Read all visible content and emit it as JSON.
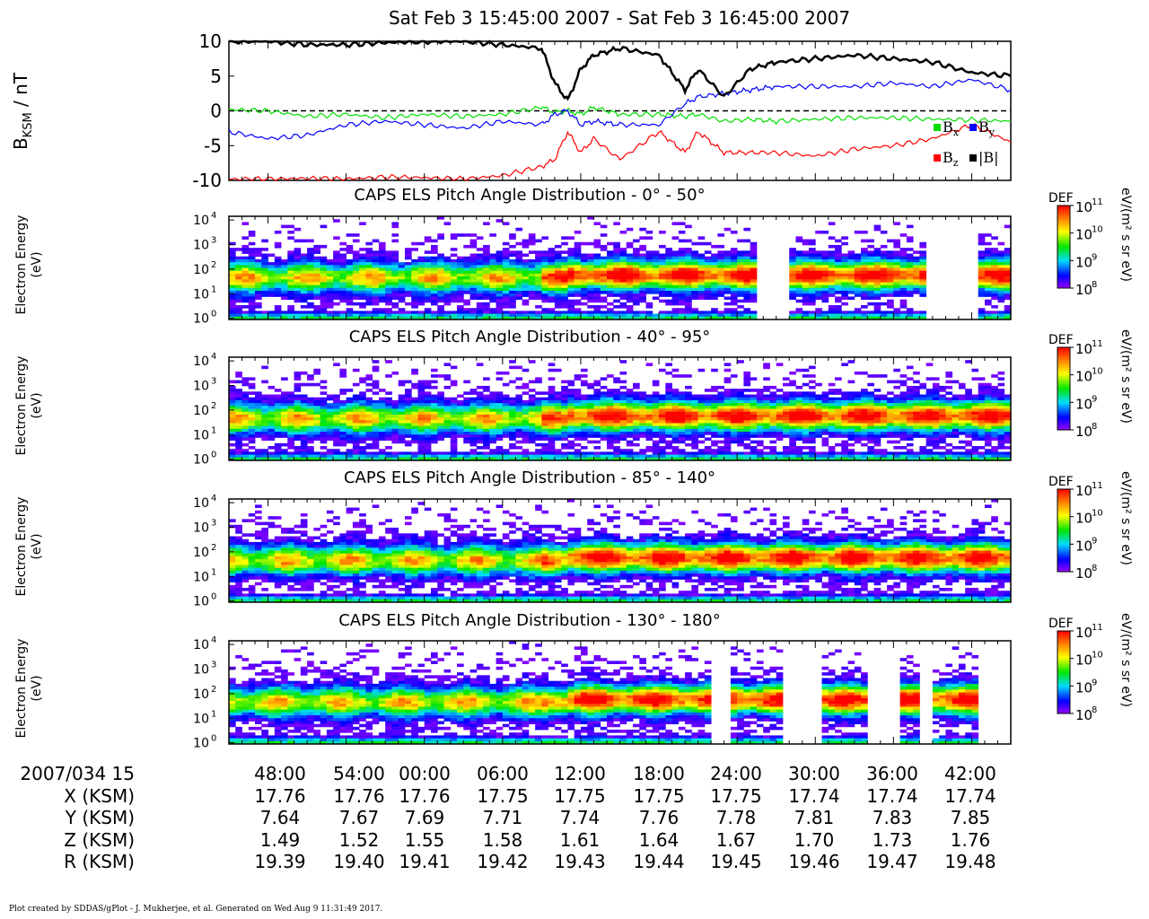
{
  "title": "Sat Feb 3 15:45:00 2007 - Sat Feb 3 16:45:00 2007",
  "mag_panel": {
    "ylabel": "B",
    "ylabel_sub": "KSM",
    "ylabel_unit": " / nT",
    "yticks": [
      "10",
      "5",
      "0",
      "-5",
      "-10"
    ],
    "legend": [
      {
        "label": "B",
        "sub": "x",
        "color": "#00dd00"
      },
      {
        "label": "B",
        "sub": "y",
        "color": "#0000ff"
      },
      {
        "label": "B",
        "sub": "z",
        "color": "#ff0000"
      },
      {
        "label": "|B|",
        "sub": "",
        "color": "#000000"
      }
    ]
  },
  "spectrograms": [
    {
      "title": "CAPS ELS Pitch Angle Distribution - 0° - 50°",
      "ylabel_top": "Electron Energy",
      "ylabel_bottom": "(eV)"
    },
    {
      "title": "CAPS ELS Pitch Angle Distribution - 40° - 95°",
      "ylabel_top": "Electron Energy",
      "ylabel_bottom": "(eV)"
    },
    {
      "title": "CAPS ELS Pitch Angle Distribution - 85° - 140°",
      "ylabel_top": "Electron Energy",
      "ylabel_bottom": "(eV)"
    },
    {
      "title": "CAPS ELS Pitch Angle Distribution - 130° - 180°",
      "ylabel_top": "Electron Energy",
      "ylabel_bottom": "(eV)"
    }
  ],
  "energy_ticks": [
    "10",
    "10",
    "10",
    "10",
    "10"
  ],
  "energy_tick_exps": [
    "4",
    "3",
    "2",
    "1",
    "0"
  ],
  "colorbar": {
    "label": "DEF",
    "unit": "eV/(m² s sr eV)",
    "ticks": [
      "10",
      "10",
      "10",
      "10"
    ],
    "tick_exps": [
      "11",
      "10",
      "9",
      "8"
    ]
  },
  "ephemeris": {
    "rows": [
      {
        "label": "2007/034 15",
        "values": [
          "48:00",
          "54:00",
          "00:00",
          "06:00",
          "12:00",
          "18:00",
          "24:00",
          "30:00",
          "36:00",
          "42:00"
        ]
      },
      {
        "label": "X (KSM)",
        "values": [
          "17.76",
          "17.76",
          "17.76",
          "17.75",
          "17.75",
          "17.75",
          "17.75",
          "17.74",
          "17.74",
          "17.74"
        ]
      },
      {
        "label": "Y (KSM)",
        "values": [
          "7.64",
          "7.67",
          "7.69",
          "7.71",
          "7.74",
          "7.76",
          "7.78",
          "7.81",
          "7.83",
          "7.85"
        ]
      },
      {
        "label": "Z (KSM)",
        "values": [
          "1.49",
          "1.52",
          "1.55",
          "1.58",
          "1.61",
          "1.64",
          "1.67",
          "1.70",
          "1.73",
          "1.76"
        ]
      },
      {
        "label": "R (KSM)",
        "values": [
          "19.39",
          "19.40",
          "19.41",
          "19.42",
          "19.43",
          "19.44",
          "19.45",
          "19.46",
          "19.47",
          "19.48"
        ]
      }
    ]
  },
  "footer": "Plot created by SDDAS/gPlot - J. Mukherjee, et al.  Generated on Wed Aug 9 11:31:49 2017.",
  "chart_data": [
    {
      "type": "line",
      "title": "",
      "xlabel": "",
      "ylabel": "B KSM / nT",
      "x_minutes": [
        0,
        3,
        6,
        9,
        12,
        15,
        18,
        21,
        24,
        25,
        26,
        27,
        28,
        30,
        33,
        35,
        36,
        38,
        40,
        42,
        45,
        48,
        51,
        54,
        57,
        60
      ],
      "ylim": [
        -10,
        10
      ],
      "series": [
        {
          "name": "Bx",
          "color": "#00dd00",
          "values": [
            0.2,
            0,
            -0.8,
            -0.5,
            -1,
            -0.5,
            -0.8,
            -0.5,
            0.5,
            -0.2,
            0,
            -0.5,
            0.5,
            -0.5,
            -0.5,
            -0.8,
            -0.5,
            -1.5,
            -1.2,
            -1.5,
            -1.2,
            -1,
            -1,
            -1.2,
            -1.3,
            -1.5
          ]
        },
        {
          "name": "By",
          "color": "#0000ff",
          "values": [
            -3,
            -4,
            -3.5,
            -2,
            -1.5,
            -2,
            -2.5,
            -1.5,
            -2,
            -0.5,
            0,
            -2,
            -1.5,
            -2,
            -2,
            1,
            2,
            2.5,
            3,
            3.5,
            3.5,
            3.5,
            4,
            3.5,
            4.5,
            3
          ]
        },
        {
          "name": "Bz",
          "color": "#ff0000",
          "values": [
            -9.8,
            -9.8,
            -9.7,
            -9.8,
            -9.5,
            -9.6,
            -9.8,
            -9.3,
            -8,
            -7,
            -3,
            -6,
            -4,
            -7,
            -3,
            -6,
            -3,
            -6,
            -6,
            -6,
            -6.5,
            -5.5,
            -5,
            -4,
            -2,
            -4.5
          ]
        },
        {
          "name": "|B|",
          "color": "#000000",
          "values": [
            10,
            10,
            9.5,
            9.5,
            9.8,
            10,
            10,
            9.5,
            9,
            4,
            1.5,
            6,
            8,
            9,
            8,
            3,
            6,
            2,
            6,
            7,
            7.5,
            8,
            7.5,
            7,
            5.5,
            5
          ]
        }
      ]
    },
    {
      "type": "heatmap",
      "title": "CAPS ELS Pitch Angle Distribution - 0° - 50°",
      "ylabel": "Electron Energy (eV)",
      "ylim_log10": [
        0,
        4.2
      ],
      "zlabel": "DEF",
      "zlim_log10": [
        8,
        11
      ],
      "data_gaps_minutes": [
        [
          40.5,
          43.2
        ],
        [
          53.5,
          57.5
        ]
      ]
    },
    {
      "type": "heatmap",
      "title": "CAPS ELS Pitch Angle Distribution - 40° - 95°",
      "ylabel": "Electron Energy (eV)",
      "ylim_log10": [
        0,
        4.2
      ],
      "zlabel": "DEF",
      "zlim_log10": [
        8,
        11
      ]
    },
    {
      "type": "heatmap",
      "title": "CAPS ELS Pitch Angle Distribution - 85° - 140°",
      "ylabel": "Electron Energy (eV)",
      "ylim_log10": [
        0,
        4.2
      ],
      "zlabel": "DEF",
      "zlim_log10": [
        8,
        11
      ]
    },
    {
      "type": "heatmap",
      "title": "CAPS ELS Pitch Angle Distribution - 130° - 180°",
      "ylabel": "Electron Energy (eV)",
      "ylim_log10": [
        0,
        4.2
      ],
      "zlabel": "DEF",
      "zlim_log10": [
        8,
        11
      ],
      "data_gaps_minutes": [
        [
          37.2,
          38.5
        ],
        [
          42.7,
          45.5
        ],
        [
          48.8,
          51.4
        ],
        [
          53.2,
          54.0
        ],
        [
          57.3,
          60.0
        ]
      ]
    }
  ]
}
